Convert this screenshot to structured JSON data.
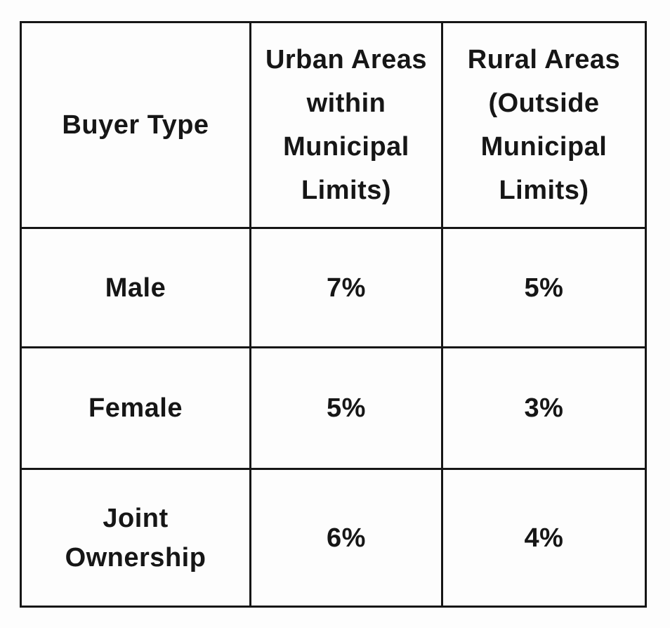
{
  "chart_data": {
    "type": "table",
    "columns": [
      "Buyer Type",
      "Urban Areas within Municipal Limits)",
      "Rural Areas (Outside Municipal Limits)"
    ],
    "rows": [
      [
        "Male",
        "7%",
        "5%"
      ],
      [
        "Female",
        "5%",
        "3%"
      ],
      [
        "Joint Ownership",
        "6%",
        "4%"
      ]
    ]
  },
  "table": {
    "header": {
      "col0": "Buyer Type",
      "col1": "Urban Areas\nwithin\nMunicipal\nLimits)",
      "col2": "Rural Areas\n(Outside\nMunicipal\nLimits)"
    },
    "rows": [
      {
        "label": "Male",
        "urban": "7%",
        "rural": "5%"
      },
      {
        "label": "Female",
        "urban": "5%",
        "rural": "3%"
      },
      {
        "label": "Joint\nOwnership",
        "urban": "6%",
        "rural": "4%"
      }
    ]
  },
  "colors": {
    "border": "#161616",
    "background": "#fdfdfd",
    "text": "#161616"
  }
}
